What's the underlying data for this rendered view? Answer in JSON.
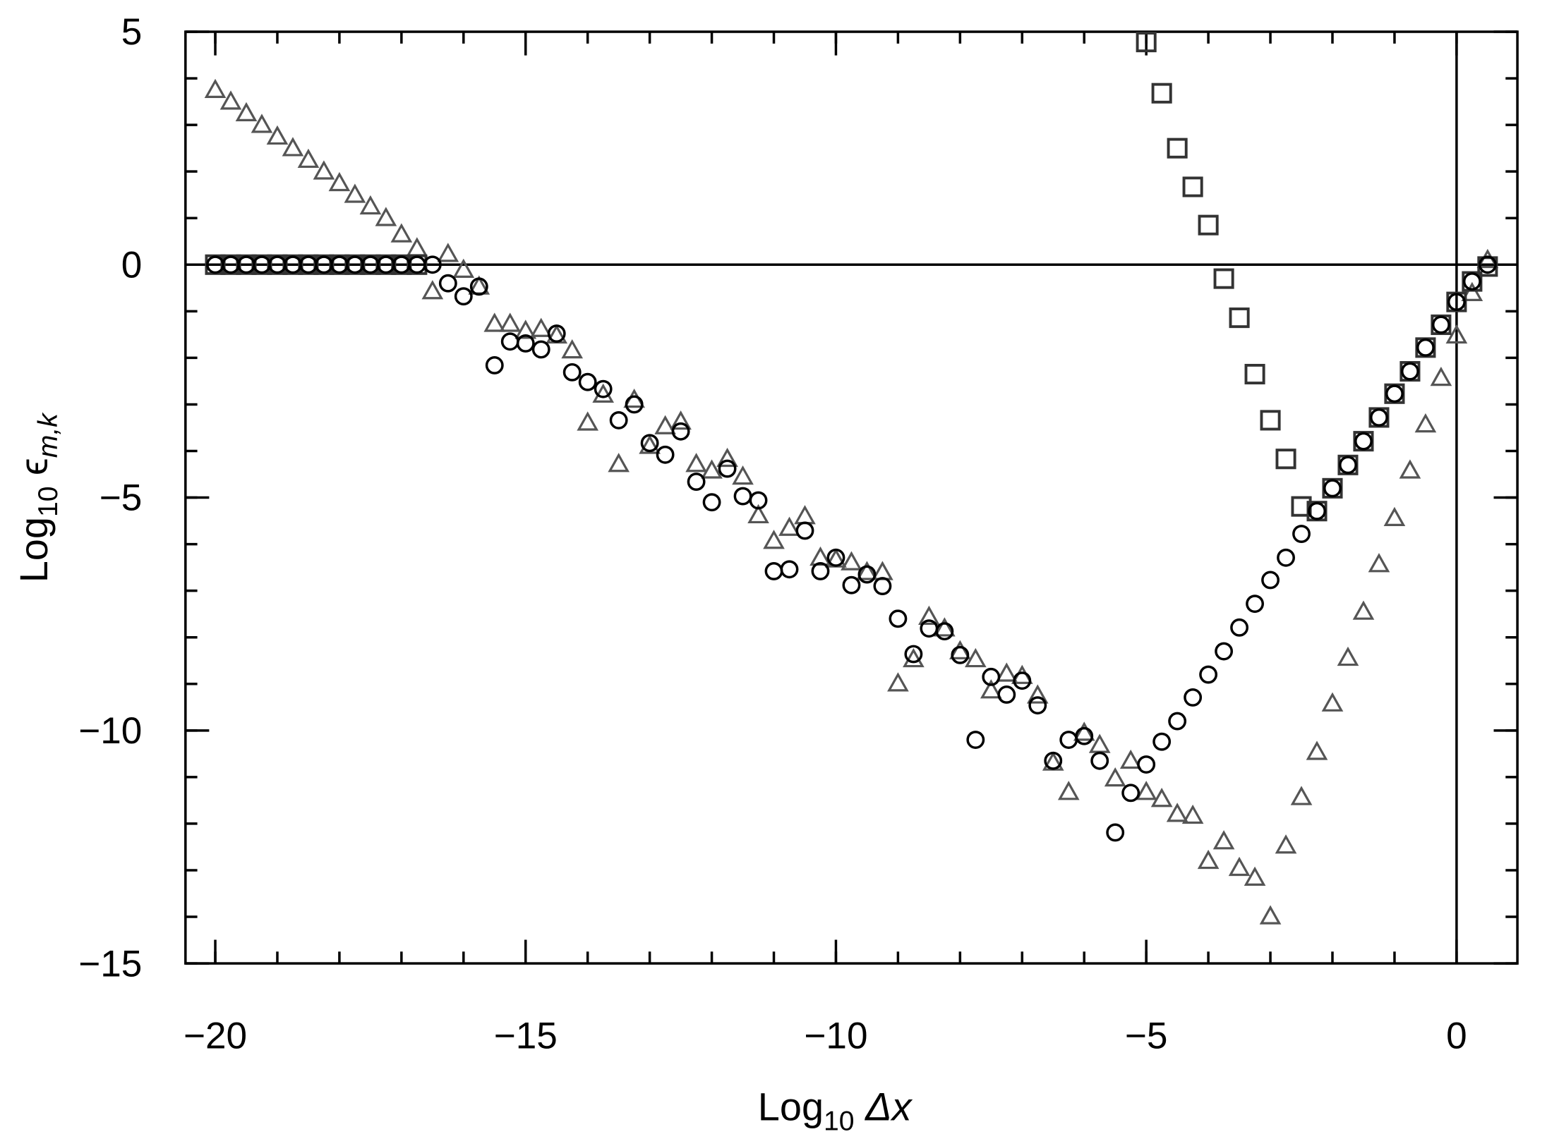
{
  "chart_data": {
    "type": "scatter",
    "xlabel": [
      "Log",
      "10",
      " Δx"
    ],
    "ylabel": [
      "Log",
      "10",
      " ϵ",
      "m,k"
    ],
    "xlim": [
      -20.48,
      0.98
    ],
    "ylim": [
      -15,
      5
    ],
    "xticks": [
      {
        "value": -20,
        "label": "−20"
      },
      {
        "value": -15,
        "label": "−15"
      },
      {
        "value": -10,
        "label": "−10"
      },
      {
        "value": -5,
        "label": "−5"
      },
      0
    ],
    "yticks": [
      {
        "value": -15,
        "label": "−15"
      },
      {
        "value": -10,
        "label": "−10"
      },
      {
        "value": -5,
        "label": "−5"
      },
      0,
      5
    ],
    "minor_tick_step": 1,
    "hline": 0,
    "vline": 0,
    "x": [
      -20,
      -19.75,
      -19.5,
      -19.25,
      -19,
      -18.75,
      -18.5,
      -18.25,
      -18,
      -17.75,
      -17.5,
      -17.25,
      -17,
      -16.75,
      -16.5,
      -16.25,
      -16,
      -15.75,
      -15.5,
      -15.25,
      -15,
      -14.75,
      -14.5,
      -14.25,
      -14,
      -13.75,
      -13.5,
      -13.25,
      -13,
      -12.75,
      -12.5,
      -12.25,
      -12,
      -11.75,
      -11.5,
      -11.25,
      -11,
      -10.75,
      -10.5,
      -10.25,
      -10,
      -9.75,
      -9.5,
      -9.25,
      -9,
      -8.75,
      -8.5,
      -8.25,
      -8,
      -7.75,
      -7.5,
      -7.25,
      -7,
      -6.75,
      -6.5,
      -6.25,
      -6,
      -5.75,
      -5.5,
      -5.25,
      -5,
      -4.75,
      -4.5,
      -4.25,
      -4,
      -3.75,
      -3.5,
      -3.25,
      -3,
      -2.75,
      -2.5,
      -2.25,
      -2,
      -1.75,
      -1.5,
      -1.25,
      -1,
      -0.75,
      -0.5,
      -0.25,
      0,
      0.25,
      0.5
    ],
    "series": [
      {
        "marker": "triangle",
        "color": "#555555",
        "values": [
          3.75,
          3.5,
          3.25,
          3.0,
          2.75,
          2.5,
          2.25,
          2.0,
          1.75,
          1.5,
          1.25,
          1.0,
          0.65,
          0.35,
          -0.57,
          0.23,
          -0.11,
          -0.47,
          -1.27,
          -1.27,
          -1.42,
          -1.38,
          -1.52,
          -1.84,
          -3.39,
          -2.79,
          -4.28,
          -2.9,
          -3.89,
          -3.47,
          -3.37,
          -4.28,
          -4.42,
          -4.17,
          -4.55,
          -5.38,
          -5.93,
          -5.65,
          -5.4,
          -6.29,
          -6.33,
          -6.39,
          -6.6,
          -6.6,
          -8.99,
          -8.47,
          -7.56,
          -7.81,
          -8.3,
          -8.47,
          -9.14,
          -8.78,
          -8.83,
          -9.25,
          -10.69,
          -11.32,
          -10.05,
          -10.31,
          -11.03,
          -10.65,
          -11.32,
          -11.47,
          -11.79,
          -11.83,
          -12.8,
          -12.38,
          -12.95,
          -13.16,
          -13.99,
          -12.47,
          -11.43,
          -10.46,
          -9.42,
          -8.44,
          -7.45,
          -6.43,
          -5.44,
          -4.42,
          -3.43,
          -2.43,
          -1.52,
          -0.61,
          0.1
        ]
      },
      {
        "marker": "square",
        "color": "#333333",
        "values": [
          0,
          0,
          0,
          0,
          0,
          0,
          0,
          0,
          0,
          0,
          0,
          0,
          0,
          0,
          null,
          null,
          null,
          null,
          null,
          null,
          null,
          null,
          null,
          null,
          null,
          null,
          null,
          null,
          null,
          null,
          null,
          null,
          null,
          null,
          null,
          null,
          null,
          null,
          null,
          null,
          null,
          null,
          null,
          null,
          null,
          null,
          null,
          null,
          null,
          null,
          null,
          null,
          null,
          null,
          null,
          null,
          null,
          null,
          null,
          null,
          4.78,
          3.68,
          2.5,
          1.67,
          0.85,
          -0.3,
          -1.14,
          -2.35,
          -3.34,
          -4.17,
          -5.19,
          -5.29,
          -4.8,
          -4.3,
          -3.79,
          -3.28,
          -2.77,
          -2.29,
          -1.78,
          -1.29,
          -0.8,
          -0.36,
          -0.04
        ]
      },
      {
        "marker": "circle",
        "color": "#000000",
        "values": [
          0,
          0,
          0,
          0,
          0,
          0,
          0,
          0,
          0,
          0,
          0,
          0,
          0,
          0,
          0,
          -0.4,
          -0.68,
          -0.47,
          -2.16,
          -1.65,
          -1.69,
          -1.82,
          -1.48,
          -2.31,
          -2.52,
          -2.67,
          -3.34,
          -3.0,
          -3.83,
          -4.08,
          -3.58,
          -4.66,
          -5.1,
          -4.38,
          -4.97,
          -5.06,
          -6.58,
          -6.54,
          -5.71,
          -6.58,
          -6.29,
          -6.88,
          -6.65,
          -6.9,
          -7.6,
          -8.36,
          -7.81,
          -7.87,
          -8.38,
          -10.2,
          -8.85,
          -9.23,
          -8.93,
          -9.46,
          -10.65,
          -10.2,
          -10.12,
          -10.65,
          -12.19,
          -11.34,
          -10.73,
          -10.24,
          -9.8,
          -9.29,
          -8.8,
          -8.3,
          -7.79,
          -7.28,
          -6.77,
          -6.29,
          -5.78,
          -5.29,
          -4.8,
          -4.3,
          -3.79,
          -3.28,
          -2.77,
          -2.29,
          -1.78,
          -1.29,
          -0.8,
          -0.36,
          0.0
        ]
      }
    ]
  }
}
